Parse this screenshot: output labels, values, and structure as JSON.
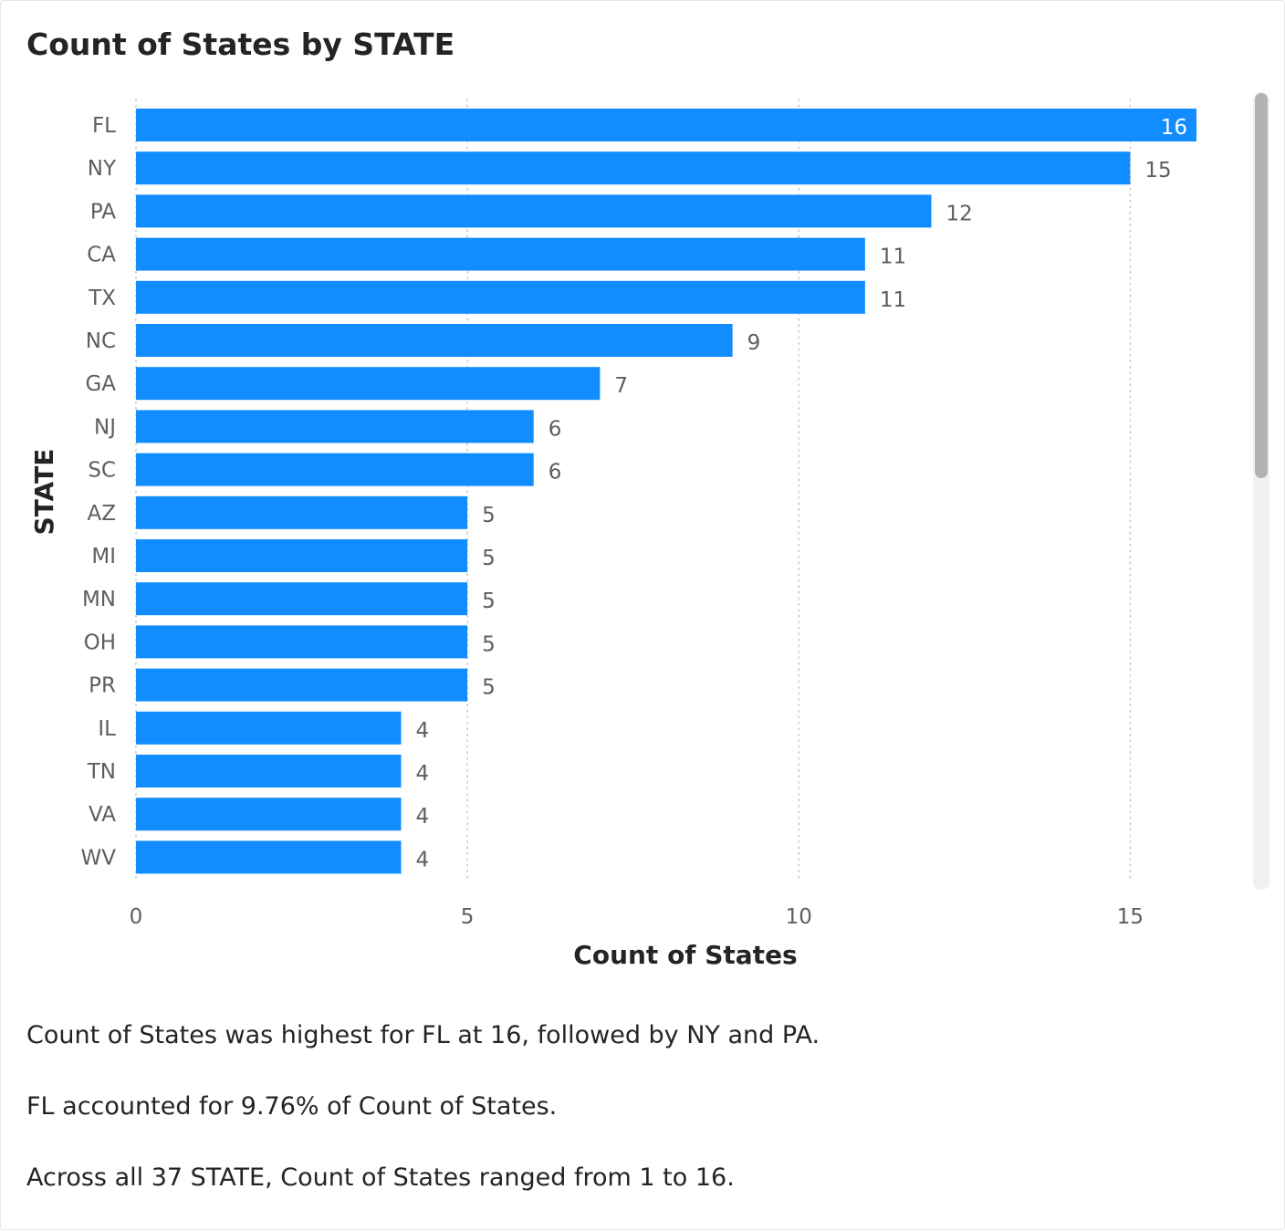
{
  "visual": {
    "title": "Count of States by STATE"
  },
  "chart_data": {
    "type": "bar",
    "orientation": "horizontal",
    "title": "Count of States by STATE",
    "xlabel": "Count of States",
    "ylabel": "STATE",
    "xlim": [
      0,
      16
    ],
    "xticks": [
      0,
      5,
      10,
      15
    ],
    "grid": true,
    "bar_color": "#118DFF",
    "categories": [
      "FL",
      "NY",
      "PA",
      "CA",
      "TX",
      "NC",
      "GA",
      "NJ",
      "SC",
      "AZ",
      "MI",
      "MN",
      "OH",
      "PR",
      "IL",
      "TN",
      "VA",
      "WV"
    ],
    "series": [
      {
        "values": [
          16,
          15,
          12,
          11,
          11,
          9,
          7,
          6,
          6,
          5,
          5,
          5,
          5,
          5,
          4,
          4,
          4,
          4
        ]
      }
    ]
  },
  "narrative": {
    "line1": "Count of States was highest for FL at 16, followed by NY and PA.",
    "line2": "FL accounted for 9.76% of Count of States.",
    "line3": "Across all 37 STATE, Count of States ranged from 1 to 16."
  },
  "colors": {
    "bar": "#118DFF",
    "text": "#252423",
    "label": "#605E5C",
    "grid": "#C8C6C4"
  }
}
